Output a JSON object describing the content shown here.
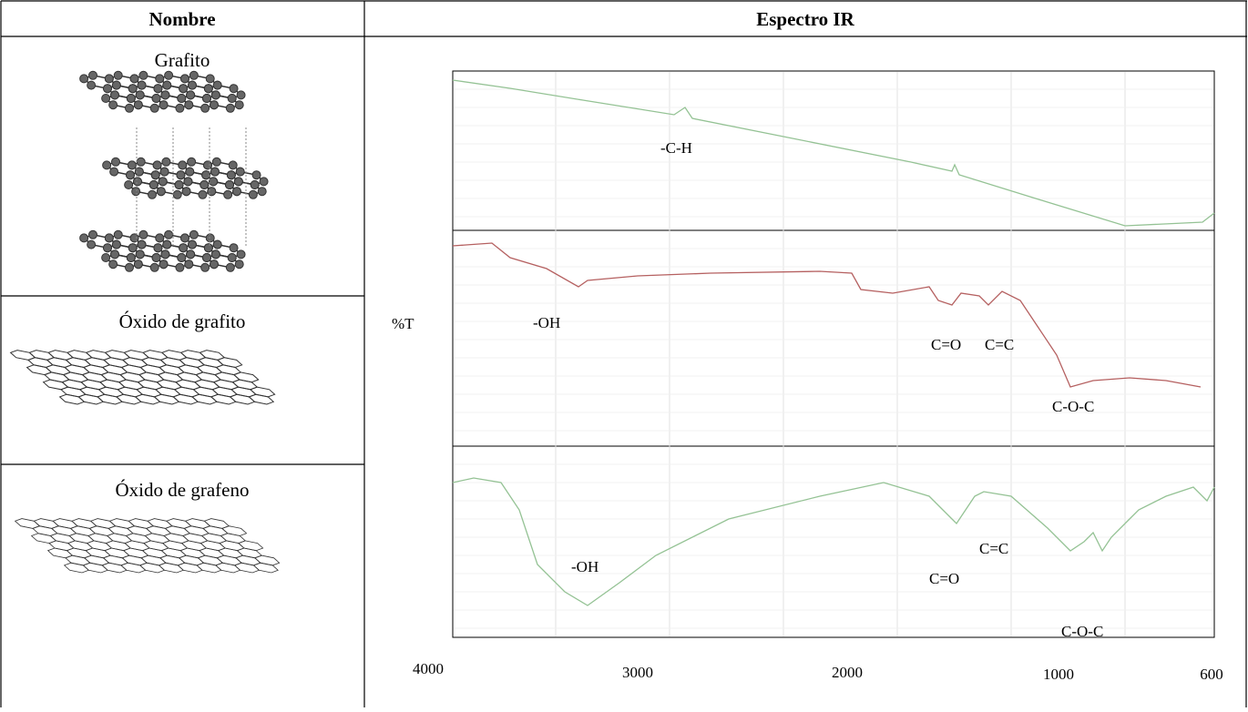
{
  "table": {
    "headers": [
      "Nombre",
      "Espectro IR"
    ],
    "rows": [
      {
        "name": "Grafito"
      },
      {
        "name": "Óxido de grafito"
      },
      {
        "name": "Óxido de grafeno"
      }
    ]
  },
  "spectrum": {
    "y_label": "%T",
    "x_ticks": [
      "4000",
      "3000",
      "2000",
      "1000",
      "600"
    ],
    "panels": [
      {
        "peaks": [
          "-C-H"
        ]
      },
      {
        "peaks": [
          "-OH",
          "C=O",
          "C=C",
          "C-O-C"
        ]
      },
      {
        "peaks": [
          "-OH",
          "C=C",
          "C=O",
          "C-O-C"
        ]
      }
    ]
  }
}
